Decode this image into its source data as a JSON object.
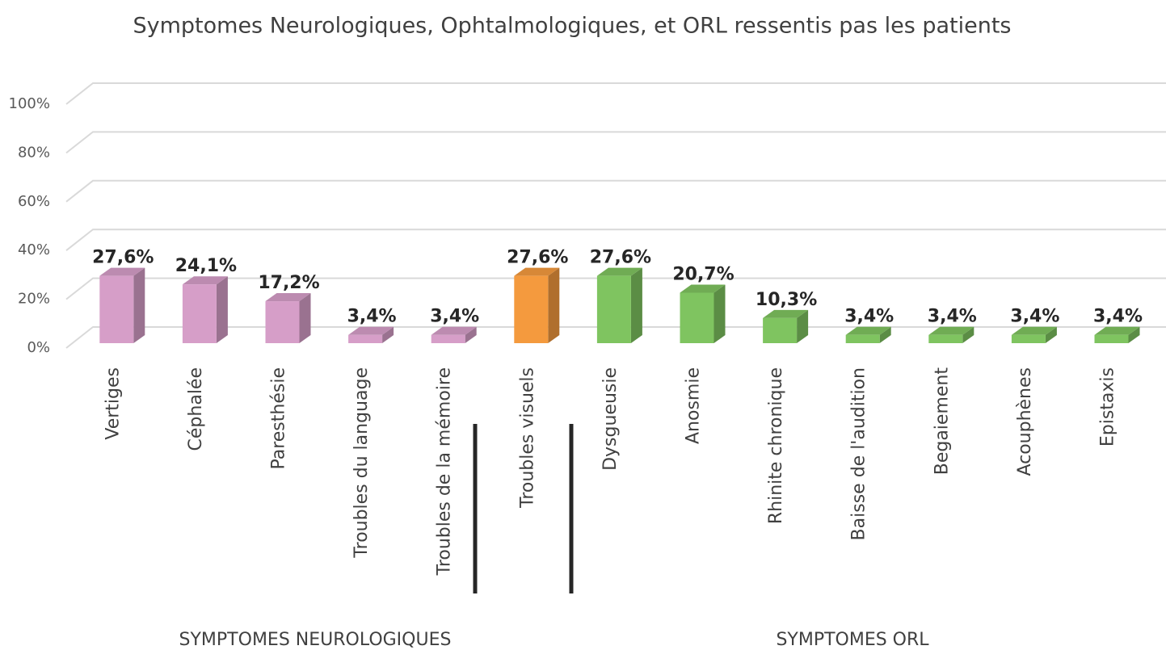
{
  "chart_data": {
    "type": "bar3d",
    "title": "Symptomes Neurologiques, Ophtalmologiques, et ORL ressentis pas les patients",
    "categories": [
      "Vertiges",
      "Céphalée",
      "Paresthésie",
      "Troubles du language",
      "Troubles de la mémoire",
      "Troubles visuels",
      "Dysgueusie",
      "Anosmie",
      "Rhinite chronique",
      "Baisse de l'audition",
      "Begaiement",
      "Acouphènes",
      "Epistaxis"
    ],
    "values": [
      27.6,
      24.1,
      17.2,
      3.4,
      3.4,
      27.6,
      27.6,
      20.7,
      10.3,
      3.4,
      3.4,
      3.4,
      3.4
    ],
    "value_labels": [
      "27,6%",
      "24,1%",
      "17,2%",
      "3,4%",
      "3,4%",
      "27,6%",
      "27,6%",
      "20,7%",
      "10,3%",
      "3,4%",
      "3,4%",
      "3,4%",
      "3,4%"
    ],
    "colors": [
      "#d69ec8",
      "#d69ec8",
      "#d69ec8",
      "#d69ec8",
      "#d69ec8",
      "#f49a3e",
      "#7fc460",
      "#7fc460",
      "#7fc460",
      "#7fc460",
      "#7fc460",
      "#7fc460",
      "#7fc460"
    ],
    "ylim": [
      0,
      100
    ],
    "yticks": [
      {
        "value": 0,
        "label": "0%"
      },
      {
        "value": 20,
        "label": "20%"
      },
      {
        "value": 40,
        "label": "40%"
      },
      {
        "value": 60,
        "label": "60%"
      },
      {
        "value": 80,
        "label": "80%"
      },
      {
        "value": 100,
        "label": "100%"
      }
    ],
    "grid": true,
    "groups": [
      "SYMPTOMES NEUROLOGIQUES",
      "SYMPTOMES ORL"
    ]
  }
}
